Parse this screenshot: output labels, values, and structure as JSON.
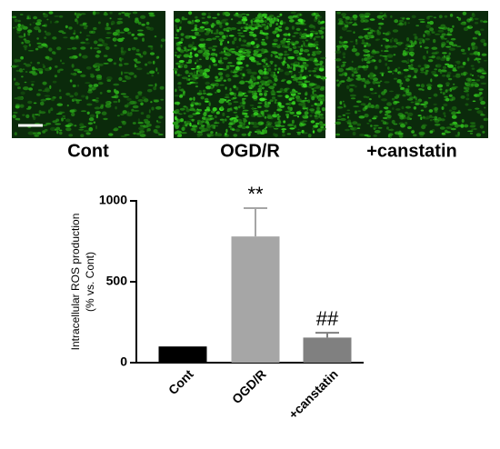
{
  "panels": [
    {
      "label": "Cont"
    },
    {
      "label": "OGD/R"
    },
    {
      "label": "+canstatin"
    }
  ],
  "chart_data": {
    "type": "bar",
    "y_label": [
      "Intracellular ROS production",
      "(% vs. Cont)"
    ],
    "categories": [
      "Cont",
      "OGD/R",
      "+canstatin"
    ],
    "values": [
      100,
      780,
      155
    ],
    "errors": [
      0,
      175,
      30
    ],
    "annotations": [
      null,
      "**",
      "##"
    ],
    "colors": [
      "#000000",
      "#a6a6a6",
      "#808080"
    ],
    "ylim": [
      0,
      1000
    ],
    "yticks": [
      0,
      500,
      1000
    ]
  }
}
